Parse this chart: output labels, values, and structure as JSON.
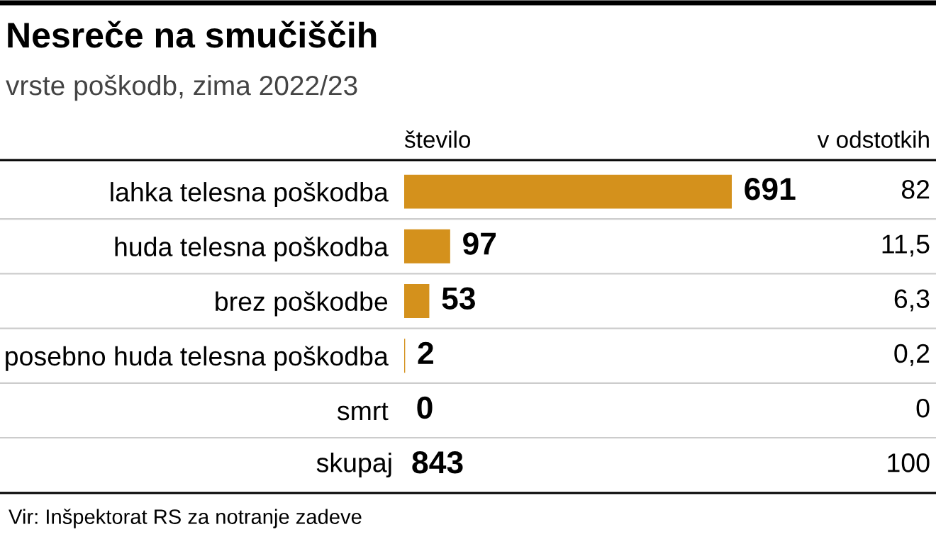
{
  "chart_data": {
    "type": "bar",
    "orientation": "horizontal",
    "title": "Nesreče na smučiščih",
    "subtitle": "vrste poškodb, zima 2022/23",
    "xlabel": "število",
    "categories": [
      "lahka telesna poškodba",
      "huda telesna poškodba",
      "brez poškodbe",
      "posebno huda telesna poškodba",
      "smrt"
    ],
    "values": [
      691,
      97,
      53,
      2,
      0
    ],
    "color": "#d4911c",
    "data_labels": true,
    "tick_labels": false,
    "grid": false,
    "legend": false,
    "annotations": [
      "v odstotkih",
      "82",
      "11,5",
      "6,3",
      "0,2",
      "0",
      "skupaj",
      "843",
      "100",
      "Vir: Inšpektorat RS za notranje zadeve"
    ]
  }
}
